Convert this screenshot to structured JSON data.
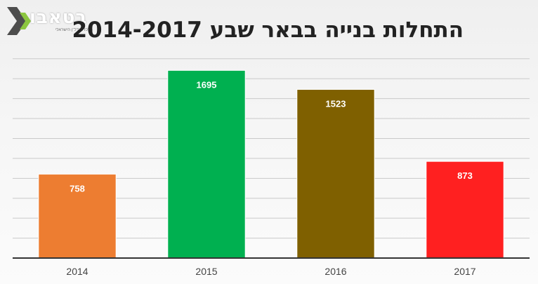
{
  "logo": {
    "name": "בטאבו",
    "tagline": "מרכז הנדל\"ן הישראלי"
  },
  "chart_data": {
    "type": "bar",
    "title": "התחלות בנייה בבאר שבע 2014-2017",
    "xlabel": "",
    "ylabel": "",
    "categories": [
      "2014",
      "2015",
      "2016",
      "2017"
    ],
    "values": [
      758,
      1695,
      1523,
      873
    ],
    "colors": [
      "#ed7d31",
      "#00b050",
      "#7f6000",
      "#ff2020"
    ],
    "ylim": [
      0,
      1900
    ],
    "grid": true,
    "legend": "none"
  }
}
